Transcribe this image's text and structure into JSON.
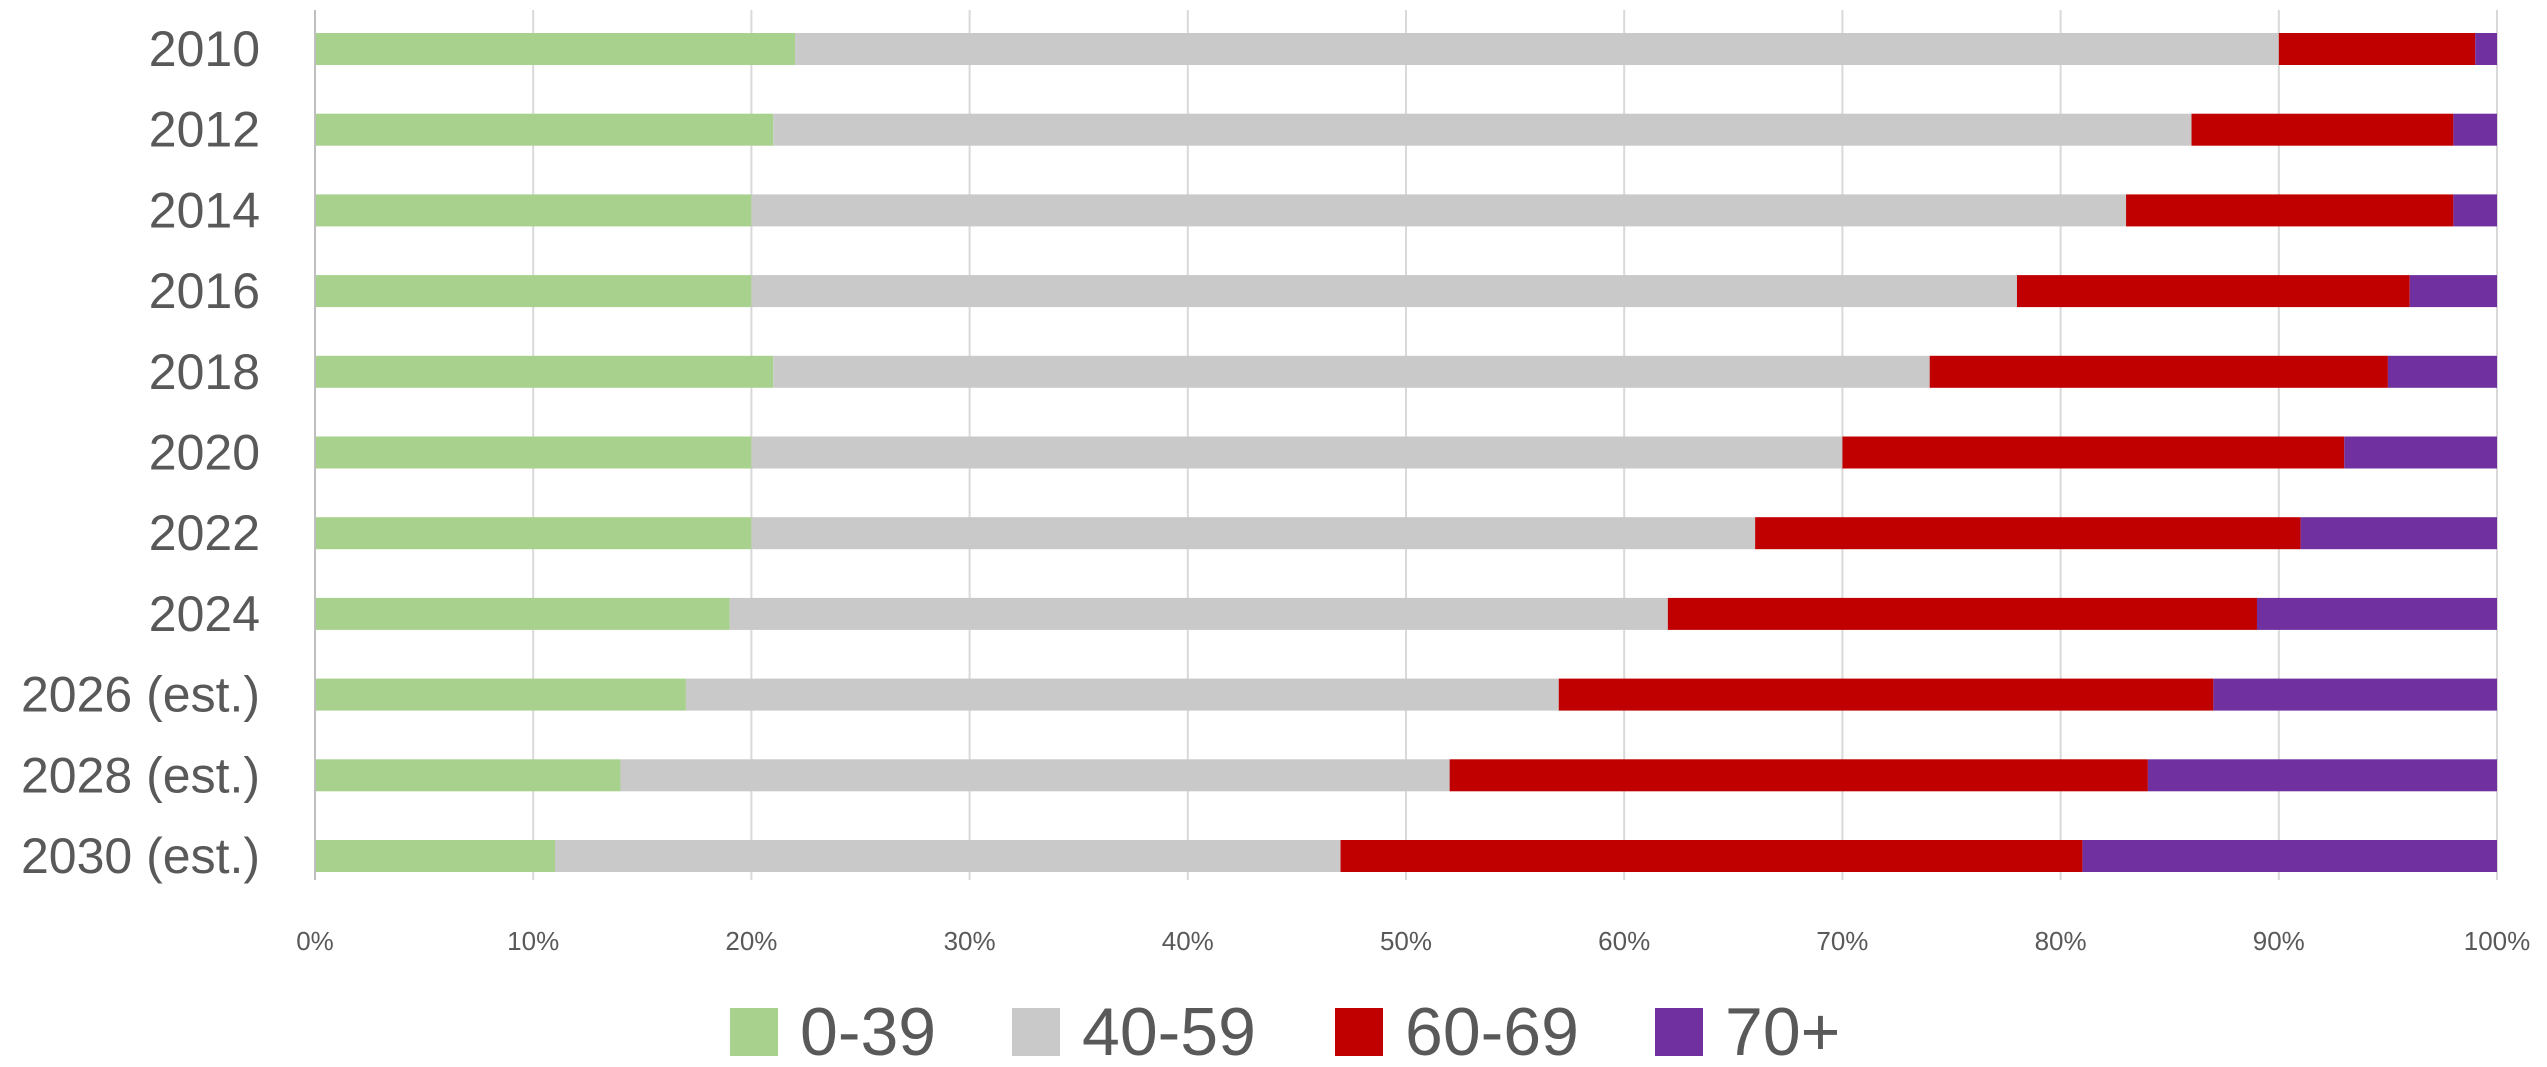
{
  "chart_data": {
    "type": "bar",
    "orientation": "horizontal",
    "stacked": "percent",
    "categories": [
      "2010",
      "2012",
      "2014",
      "2016",
      "2018",
      "2020",
      "2022",
      "2024",
      "2026 (est.)",
      "2028 (est.)",
      "2030 (est.)"
    ],
    "series": [
      {
        "name": "0-39",
        "color": "#a9d18e",
        "values": [
          22,
          21,
          20,
          20,
          21,
          20,
          20,
          19,
          17,
          14,
          11
        ]
      },
      {
        "name": "40-59",
        "color": "#c9c9c9",
        "values": [
          68,
          65,
          63,
          58,
          53,
          50,
          46,
          43,
          40,
          38,
          36
        ]
      },
      {
        "name": "60-69",
        "color": "#c00000",
        "values": [
          9,
          12,
          15,
          18,
          21,
          23,
          25,
          27,
          30,
          32,
          34
        ]
      },
      {
        "name": "70+",
        "color": "#7030a0",
        "values": [
          1,
          2,
          2,
          4,
          5,
          7,
          9,
          11,
          13,
          16,
          19
        ]
      }
    ],
    "x_ticks": [
      "0%",
      "10%",
      "20%",
      "30%",
      "40%",
      "50%",
      "60%",
      "70%",
      "80%",
      "90%",
      "100%"
    ],
    "xlim": [
      0,
      100
    ],
    "title": "",
    "xlabel": "",
    "ylabel": "",
    "grid": true,
    "legend": "bottom"
  }
}
